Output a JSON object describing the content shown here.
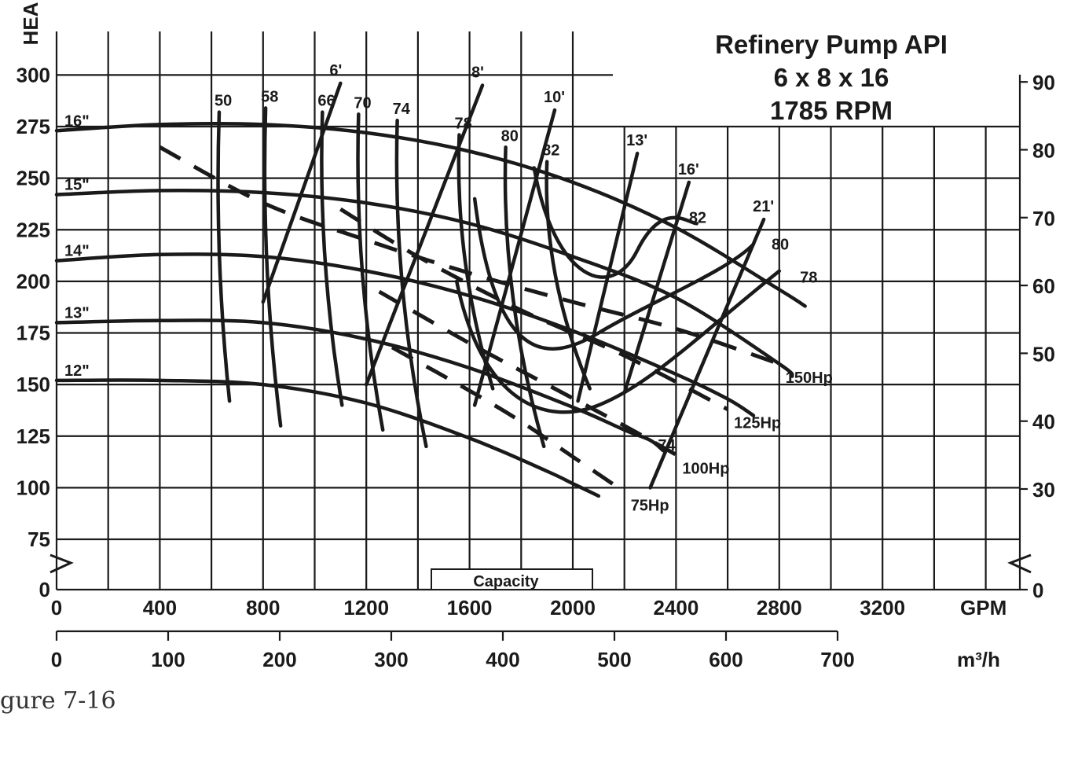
{
  "chart_data": {
    "type": "line",
    "title": [
      "Refinery Pump API",
      "6 x 8 x 16",
      "1785 RPM"
    ],
    "x_axis": {
      "unit_label": "GPM",
      "ticks": [
        "0",
        "400",
        "800",
        "1200",
        "1600",
        "2000",
        "2400",
        "2800",
        "3200"
      ],
      "range": [
        0,
        3400
      ]
    },
    "x_axis_secondary": {
      "unit_label": "m³/h",
      "ticks": [
        "0",
        "100",
        "200",
        "300",
        "400",
        "500",
        "600",
        "700"
      ],
      "range": [
        0,
        700
      ]
    },
    "y_axis": {
      "label": "HEA",
      "ticks": [
        "0",
        "75",
        "100",
        "125",
        "150",
        "175",
        "200",
        "225",
        "250",
        "275",
        "300"
      ],
      "break": true,
      "range": [
        75,
        325
      ]
    },
    "y_axis_secondary": {
      "ticks": [
        "0",
        "30",
        "40",
        "50",
        "60",
        "70",
        "80",
        "90"
      ],
      "break": true
    },
    "impeller_curves": [
      {
        "name": "16\"",
        "points": [
          [
            0,
            273
          ],
          [
            400,
            276
          ],
          [
            800,
            276
          ],
          [
            1200,
            272
          ],
          [
            1600,
            263
          ],
          [
            2000,
            248
          ],
          [
            2400,
            226
          ],
          [
            2800,
            196
          ],
          [
            2900,
            188
          ]
        ]
      },
      {
        "name": "15\"",
        "points": [
          [
            0,
            242
          ],
          [
            400,
            244
          ],
          [
            800,
            243
          ],
          [
            1200,
            238
          ],
          [
            1600,
            228
          ],
          [
            2000,
            212
          ],
          [
            2400,
            192
          ],
          [
            2800,
            160
          ],
          [
            2850,
            154
          ]
        ]
      },
      {
        "name": "14\"",
        "points": [
          [
            0,
            210
          ],
          [
            400,
            213
          ],
          [
            800,
            212
          ],
          [
            1200,
            205
          ],
          [
            1600,
            193
          ],
          [
            2000,
            176
          ],
          [
            2400,
            155
          ],
          [
            2600,
            143
          ],
          [
            2700,
            135
          ]
        ]
      },
      {
        "name": "13\"",
        "points": [
          [
            0,
            180
          ],
          [
            400,
            181
          ],
          [
            800,
            180
          ],
          [
            1200,
            172
          ],
          [
            1600,
            158
          ],
          [
            2000,
            139
          ],
          [
            2200,
            128
          ],
          [
            2300,
            123
          ],
          [
            2350,
            118
          ]
        ]
      },
      {
        "name": "12\"",
        "points": [
          [
            0,
            152
          ],
          [
            400,
            152
          ],
          [
            800,
            150
          ],
          [
            1200,
            141
          ],
          [
            1600,
            124
          ],
          [
            1900,
            108
          ],
          [
            2000,
            102
          ],
          [
            2100,
            96
          ]
        ]
      }
    ],
    "efficiency_labels": [
      "50",
      "58",
      "66",
      "70",
      "74",
      "78",
      "80",
      "82",
      "82",
      "80",
      "78",
      "74"
    ],
    "npsh_labels": [
      "6'",
      "8'",
      "10'",
      "13'",
      "16'",
      "21'"
    ],
    "power_curves": [
      {
        "name": "75Hp",
        "points": [
          [
            1300,
            168
          ],
          [
            1600,
            147
          ],
          [
            1800,
            132
          ],
          [
            2000,
            115
          ],
          [
            2200,
            98
          ]
        ]
      },
      {
        "name": "100Hp",
        "points": [
          [
            1250,
            195
          ],
          [
            1600,
            170
          ],
          [
            1900,
            150
          ],
          [
            2200,
            130
          ],
          [
            2400,
            116
          ]
        ]
      },
      {
        "name": "125Hp",
        "points": [
          [
            1100,
            235
          ],
          [
            1400,
            212
          ],
          [
            1800,
            186
          ],
          [
            2200,
            164
          ],
          [
            2600,
            138
          ]
        ]
      },
      {
        "name": "150Hp",
        "points": [
          [
            400,
            265
          ],
          [
            800,
            238
          ],
          [
            1200,
            220
          ],
          [
            1600,
            204
          ],
          [
            2000,
            190
          ],
          [
            2400,
            177
          ],
          [
            2800,
            160
          ]
        ]
      }
    ],
    "axis_bar_label": "Capacity"
  },
  "caption": "gure 7-16"
}
